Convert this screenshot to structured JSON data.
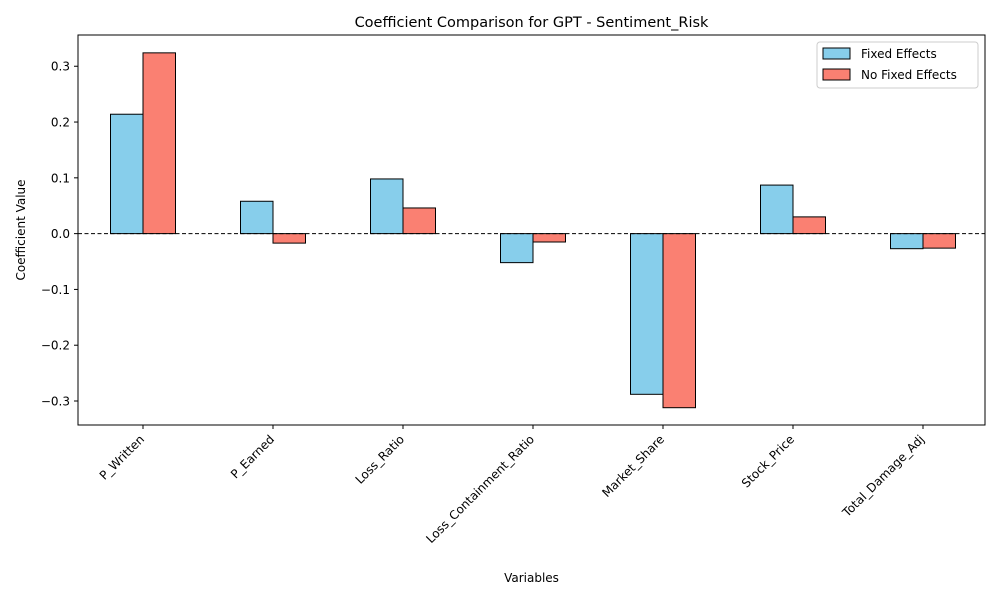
{
  "chart_data": {
    "type": "bar",
    "title": "Coefficient Comparison for GPT - Sentiment_Risk",
    "xlabel": "Variables",
    "ylabel": "Coefficient Value",
    "categories": [
      "P_Written",
      "P_Earned",
      "Loss_Ratio",
      "Loss_Containment_Ratio",
      "Market_Share",
      "Stock_Price",
      "Total_Damage_Adj"
    ],
    "series": [
      {
        "name": "Fixed Effects",
        "color": "#87ceeb",
        "values": [
          0.214,
          0.058,
          0.098,
          -0.052,
          -0.288,
          0.087,
          -0.027
        ]
      },
      {
        "name": "No Fixed Effects",
        "color": "#fa8072",
        "values": [
          0.324,
          -0.017,
          0.046,
          -0.015,
          -0.312,
          0.03,
          -0.026
        ]
      }
    ],
    "ylim": [
      -0.343,
      0.356
    ],
    "yticks": [
      -0.3,
      -0.2,
      -0.1,
      0.0,
      0.1,
      0.2,
      0.3
    ],
    "ytick_labels": [
      "−0.3",
      "−0.2",
      "−0.1",
      "0.0",
      "0.1",
      "0.2",
      "0.3"
    ],
    "zero_line": "dashed",
    "grid": false,
    "legend_position": "top-right"
  }
}
